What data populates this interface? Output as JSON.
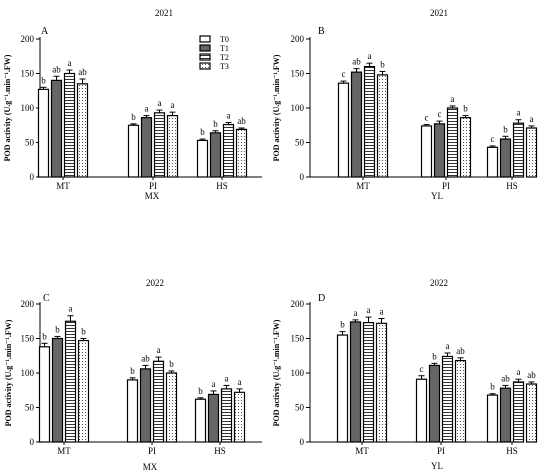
{
  "chart_data": [
    {
      "type": "bar",
      "panel_label": "A",
      "title": "2021",
      "ylabel": "POD activity (U.g⁻¹.min⁻¹.FW)",
      "xlabel": "MX",
      "categories": [
        "MT",
        "PI",
        "HS"
      ],
      "ylim": [
        0,
        200
      ],
      "yticks": [
        "0",
        "50",
        "100",
        "150",
        "200"
      ],
      "legend": true,
      "series": [
        {
          "name": "T0",
          "values": [
            127,
            75,
            53
          ],
          "errors": [
            3,
            2,
            2
          ],
          "letters": [
            "b",
            "b",
            "b"
          ]
        },
        {
          "name": "T1",
          "values": [
            140,
            86,
            64
          ],
          "errors": [
            6,
            3,
            3
          ],
          "letters": [
            "ab",
            "a",
            "b"
          ]
        },
        {
          "name": "T2",
          "values": [
            150,
            93,
            76
          ],
          "errors": [
            5,
            4,
            3
          ],
          "letters": [
            "a",
            "a",
            "a"
          ]
        },
        {
          "name": "T3",
          "values": [
            135,
            89,
            69
          ],
          "errors": [
            7,
            5,
            2
          ],
          "letters": [
            "ab",
            "a",
            "ab"
          ]
        }
      ]
    },
    {
      "type": "bar",
      "panel_label": "B",
      "title": "2021",
      "ylabel": "POD activity (U.g⁻¹.min⁻¹.FW)",
      "xlabel": "YL",
      "categories": [
        "MT",
        "PI",
        "HS"
      ],
      "ylim": [
        0,
        200
      ],
      "yticks": [
        "0",
        "50",
        "100",
        "150",
        "200"
      ],
      "legend": false,
      "series": [
        {
          "name": "T0",
          "values": [
            136,
            74,
            43
          ],
          "errors": [
            3,
            2,
            2
          ],
          "letters": [
            "c",
            "c",
            "c"
          ]
        },
        {
          "name": "T1",
          "values": [
            152,
            77,
            55
          ],
          "errors": [
            5,
            4,
            4
          ],
          "letters": [
            "ab",
            "c",
            "b"
          ]
        },
        {
          "name": "T2",
          "values": [
            160,
            100,
            78
          ],
          "errors": [
            5,
            3,
            5
          ],
          "letters": [
            "a",
            "a",
            "a"
          ]
        },
        {
          "name": "T3",
          "values": [
            148,
            86,
            71
          ],
          "errors": [
            5,
            3,
            3
          ],
          "letters": [
            "b",
            "b",
            "a"
          ]
        }
      ]
    },
    {
      "type": "bar",
      "panel_label": "C",
      "title": "2022",
      "ylabel": "POD activity (U.g⁻¹.min⁻¹.FW)",
      "xlabel": "MX",
      "categories": [
        "MT",
        "PI",
        "HS"
      ],
      "ylim": [
        0,
        200
      ],
      "yticks": [
        "0",
        "50",
        "100",
        "150",
        "200"
      ],
      "legend": false,
      "series": [
        {
          "name": "T0",
          "values": [
            138,
            90,
            62
          ],
          "errors": [
            5,
            3,
            2
          ],
          "letters": [
            "b",
            "b",
            "b"
          ]
        },
        {
          "name": "T1",
          "values": [
            150,
            106,
            69
          ],
          "errors": [
            3,
            5,
            5
          ],
          "letters": [
            "b",
            "ab",
            "a"
          ]
        },
        {
          "name": "T2",
          "values": [
            175,
            117,
            77
          ],
          "errors": [
            8,
            6,
            5
          ],
          "letters": [
            "a",
            "a",
            "a"
          ]
        },
        {
          "name": "T3",
          "values": [
            147,
            100,
            72
          ],
          "errors": [
            3,
            3,
            5
          ],
          "letters": [
            "b",
            "b",
            "a"
          ]
        }
      ]
    },
    {
      "type": "bar",
      "panel_label": "D",
      "title": "2022",
      "ylabel": "POD activity (U.g⁻¹.min⁻¹.FW)",
      "xlabel": "YL",
      "categories": [
        "MT",
        "PI",
        "HS"
      ],
      "ylim": [
        0,
        200
      ],
      "yticks": [
        "0",
        "50",
        "100",
        "150",
        "200"
      ],
      "legend": false,
      "series": [
        {
          "name": "T0",
          "values": [
            155,
            91,
            68
          ],
          "errors": [
            5,
            5,
            2
          ],
          "letters": [
            "b",
            "c",
            "b"
          ]
        },
        {
          "name": "T1",
          "values": [
            174,
            111,
            78
          ],
          "errors": [
            3,
            3,
            4
          ],
          "letters": [
            "a",
            "b",
            "ab"
          ]
        },
        {
          "name": "T2",
          "values": [
            173,
            124,
            87
          ],
          "errors": [
            8,
            5,
            4
          ],
          "letters": [
            "a",
            "a",
            "a"
          ]
        },
        {
          "name": "T3",
          "values": [
            172,
            118,
            84
          ],
          "errors": [
            7,
            4,
            3
          ],
          "letters": [
            "a",
            "ab",
            "ab"
          ]
        }
      ]
    }
  ]
}
